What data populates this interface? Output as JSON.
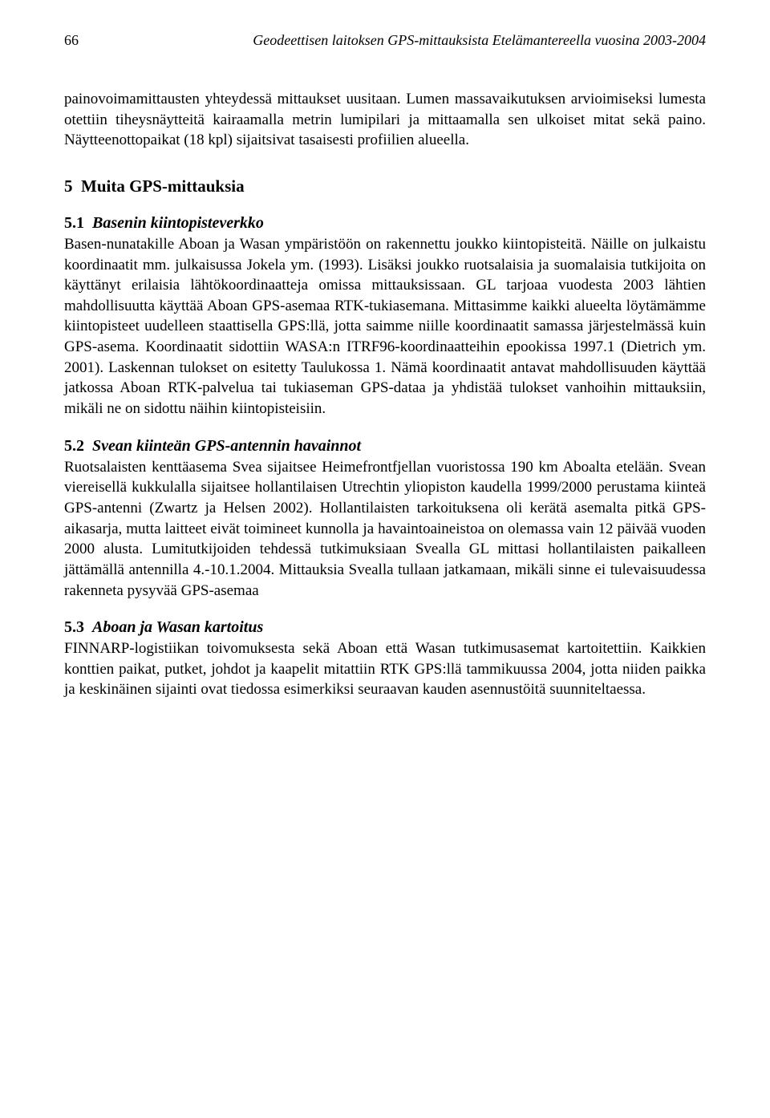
{
  "header": {
    "page_number": "66",
    "title": "Geodeettisen laitoksen GPS-mittauksista Etelämantereella vuosina 2003-2004"
  },
  "intro_paragraph": "painovoimamittausten yhteydessä mittaukset uusitaan. Lumen massavaikutuksen arvioimiseksi lumesta otettiin tiheysnäytteitä kairaamalla metrin lumipilari ja mittaamalla sen ulkoiset mitat sekä paino. Näytteenottopaikat (18 kpl) sijaitsivat tasaisesti profiilien alueella.",
  "section5": {
    "number": "5",
    "title": "Muita GPS-mittauksia"
  },
  "section5_1": {
    "number": "5.1",
    "title": "Basenin kiintopisteverkko",
    "text": "Basen-nunatakille Aboan ja Wasan ympäristöön on rakennettu joukko kiintopisteitä. Näille on julkaistu koordinaatit mm. julkaisussa Jokela ym. (1993). Lisäksi joukko ruotsalaisia ja suomalaisia tutkijoita on käyttänyt erilaisia lähtökoordinaatteja omissa mittauksissaan. GL tarjoaa vuodesta 2003 lähtien mahdollisuutta käyttää Aboan GPS-asemaa RTK-tukiasemana. Mittasimme kaikki alueelta löytämämme kiintopisteet uudelleen staattisella GPS:llä, jotta saimme niille koordinaatit samassa järjestelmässä kuin GPS-asema. Koordinaatit sidottiin WASA:n ITRF96-koordinaatteihin epookissa 1997.1 (Dietrich ym. 2001). Laskennan tulokset on esitetty Taulukossa 1. Nämä koordinaatit antavat mahdollisuuden käyttää jatkossa Aboan RTK-palvelua tai tukiaseman GPS-dataa ja yhdistää tulokset vanhoihin mittauksiin, mikäli ne on sidottu näihin kiintopisteisiin."
  },
  "section5_2": {
    "number": "5.2",
    "title": "Svean kiinteän GPS-antennin havainnot",
    "text": "Ruotsalaisten kenttäasema Svea sijaitsee Heimefrontfjellan vuoristossa 190 km Aboalta etelään. Svean viereisellä kukkulalla sijaitsee hollantilaisen Utrechtin yliopiston kaudella 1999/2000 perustama kiinteä GPS-antenni (Zwartz ja Helsen 2002). Hollantilaisten tarkoituksena oli kerätä asemalta pitkä GPS-aikasarja, mutta laitteet eivät toimineet kunnolla ja havaintoaineistoa on olemassa vain 12 päivää vuoden 2000 alusta. Lumitutkijoiden tehdessä tutkimuksiaan Svealla GL mittasi hollantilaisten paikalleen jättämällä antennilla 4.-10.1.2004. Mittauksia Svealla tullaan jatkamaan, mikäli sinne ei tulevaisuudessa rakenneta pysyvää GPS-asemaa"
  },
  "section5_3": {
    "number": "5.3",
    "title": "Aboan ja Wasan kartoitus",
    "text": "FINNARP-logistiikan toivomuksesta sekä Aboan että Wasan tutkimusasemat kartoitettiin. Kaikkien konttien paikat, putket, johdot ja kaapelit mitattiin RTK GPS:llä tammikuussa 2004, jotta niiden paikka ja keskinäinen sijainti ovat tiedossa esimerkiksi seuraavan kauden asennustöitä suunniteltaessa."
  }
}
